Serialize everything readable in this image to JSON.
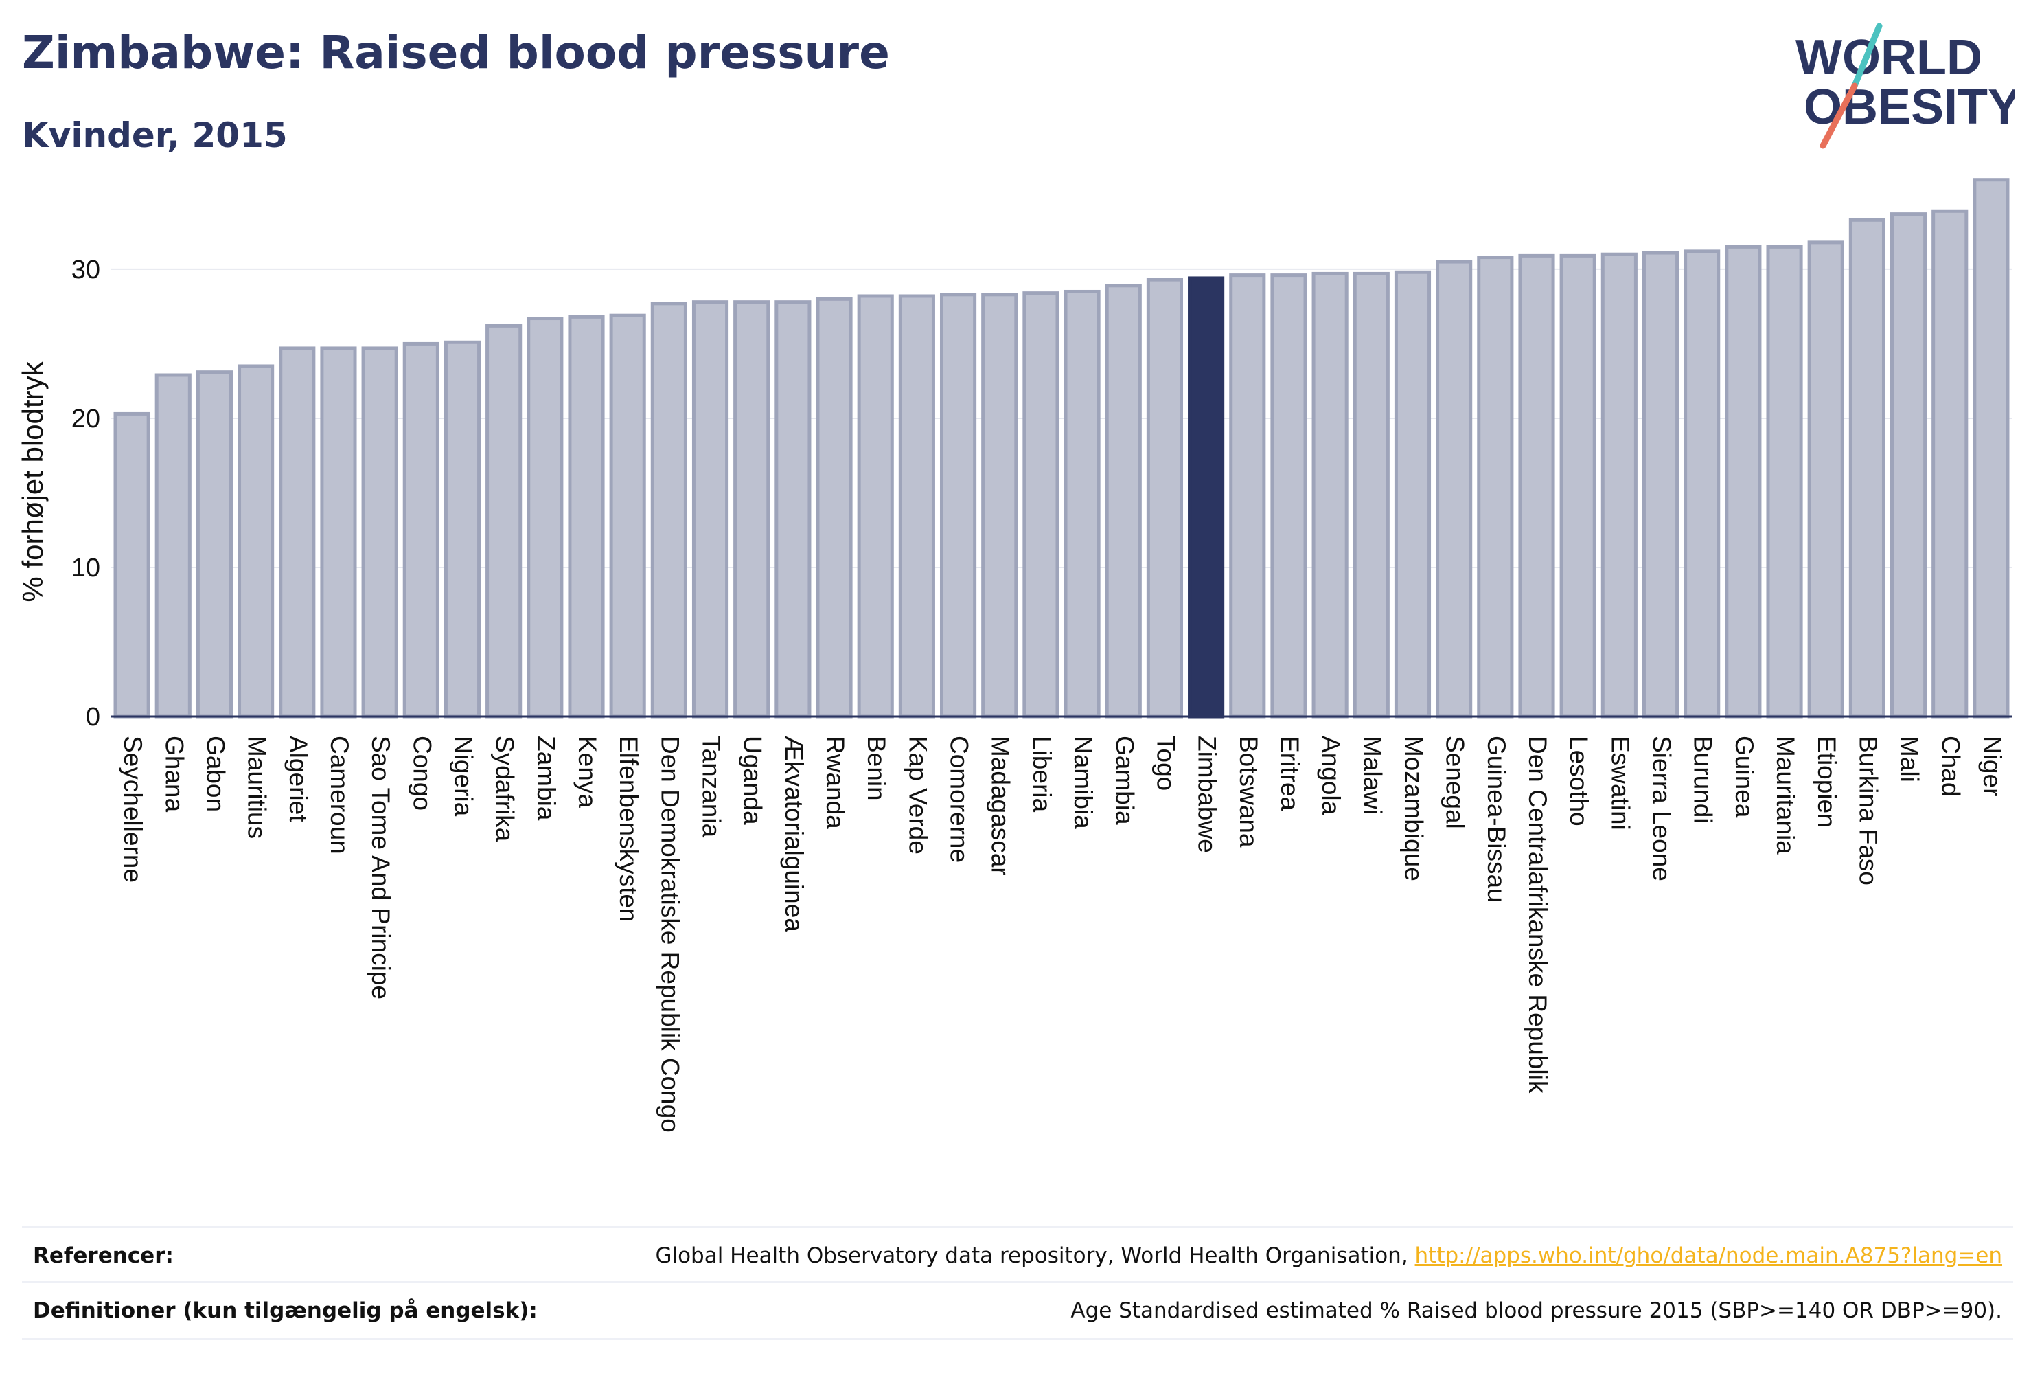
{
  "header": {
    "title": "Zimbabwe: Raised blood pressure",
    "subtitle": "Kvinder, 2015"
  },
  "logo": {
    "line1": "WORLD",
    "line2": "OBESITY",
    "colors": {
      "text": "#2b3561",
      "slash_top": "#4cc2c0",
      "slash_bottom": "#e8705a"
    }
  },
  "chart_data": {
    "type": "bar",
    "ylabel": "% forhøjet blodtryk",
    "xlabel": "",
    "ylim": [
      0,
      37
    ],
    "yticks": [
      0,
      10,
      20,
      30
    ],
    "grid": true,
    "highlight": "Zimbabwe",
    "colors": {
      "bar": "#bdc1d0",
      "bar_border": "#9ea4ba",
      "highlight": "#2b3561"
    },
    "categories": [
      "Seychellerne",
      "Ghana",
      "Gabon",
      "Mauritius",
      "Algeriet",
      "Cameroun",
      "Sao Tome And Principe",
      "Congo",
      "Nigeria",
      "Sydafrika",
      "Zambia",
      "Kenya",
      "Elfenbenskysten",
      "Den Demokratiske Republik Congo",
      "Tanzania",
      "Uganda",
      "Ækvatorialguinea",
      "Rwanda",
      "Benin",
      "Kap Verde",
      "Comorerne",
      "Madagascar",
      "Liberia",
      "Namibia",
      "Gambia",
      "Togo",
      "Zimbabwe",
      "Botswana",
      "Eritrea",
      "Angola",
      "Malawi",
      "Mozambique",
      "Senegal",
      "Guinea-Bissau",
      "Den Centralafrikanske Republik",
      "Lesotho",
      "Eswatini",
      "Sierra Leone",
      "Burundi",
      "Guinea",
      "Mauritania",
      "Etiopien",
      "Burkina Faso",
      "Mali",
      "Chad",
      "Niger"
    ],
    "values": [
      20.3,
      22.9,
      23.1,
      23.5,
      24.7,
      24.7,
      24.7,
      25.0,
      25.1,
      26.2,
      26.7,
      26.8,
      26.9,
      27.7,
      27.8,
      27.8,
      27.8,
      28.0,
      28.2,
      28.2,
      28.3,
      28.3,
      28.4,
      28.5,
      28.9,
      29.3,
      29.4,
      29.6,
      29.6,
      29.7,
      29.7,
      29.8,
      30.5,
      30.8,
      30.9,
      30.9,
      31.0,
      31.1,
      31.2,
      31.5,
      31.5,
      31.8,
      33.3,
      33.7,
      33.9,
      36.0
    ]
  },
  "footer": {
    "ref_label": "Referencer:",
    "ref_text": "Global Health Observatory data repository, World Health Organisation, ",
    "ref_link": "http://apps.who.int/gho/data/node.main.A875?lang=en",
    "def_label": "Definitioner (kun tilgængelig på engelsk):",
    "def_text": "Age Standardised estimated % Raised blood pressure 2015 (SBP>=140 OR DBP>=90)."
  }
}
